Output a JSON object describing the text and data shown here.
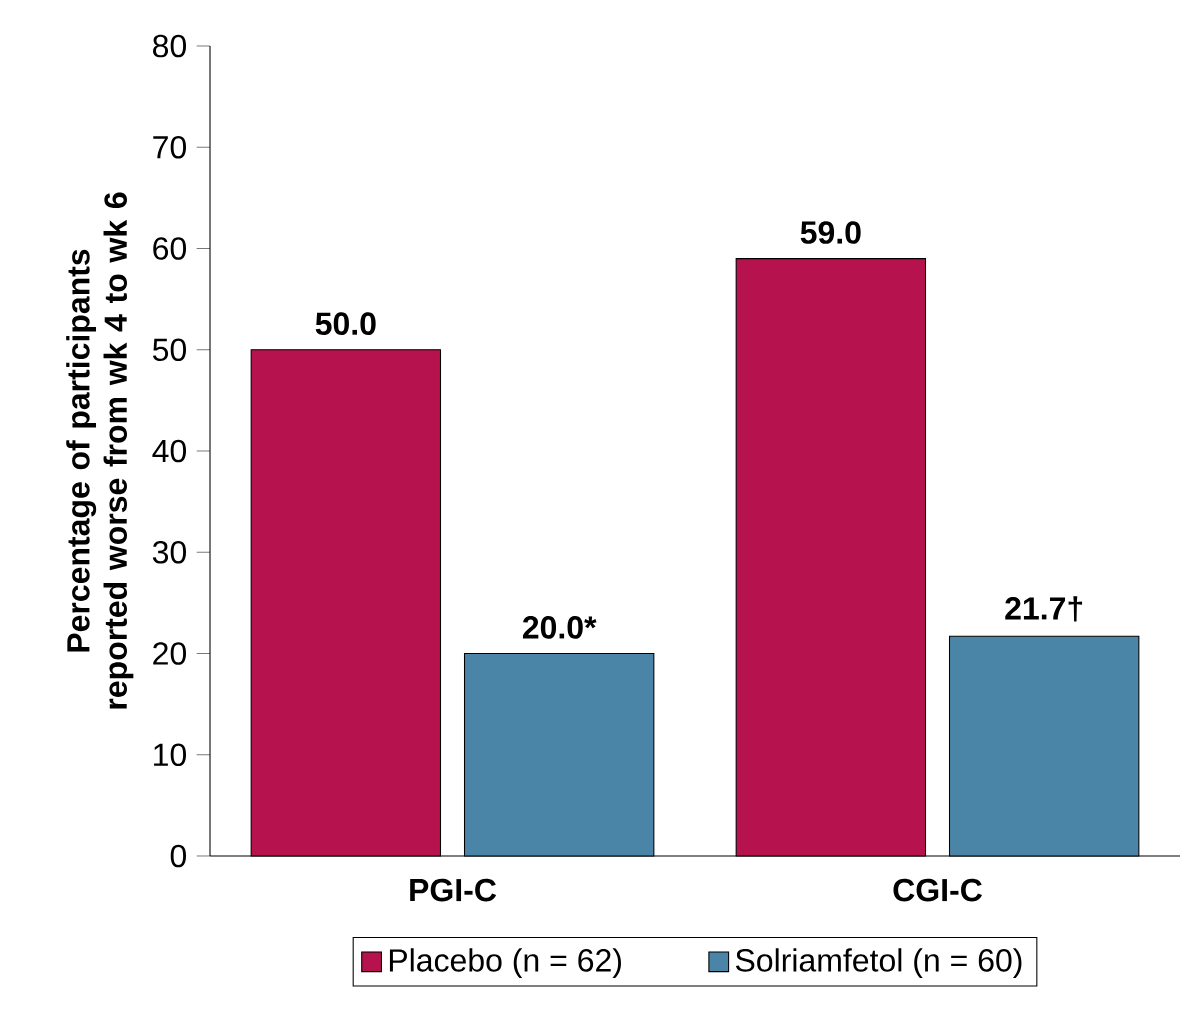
{
  "chart_data": {
    "type": "bar",
    "ylabel": "Percentage of participants reported worse from wk 4 to wk 6",
    "categories": [
      "PGI-C",
      "CGI-C"
    ],
    "series": [
      {
        "name": "Placebo (n = 62)",
        "color": "#b5124e",
        "values": [
          50.0,
          59.0
        ],
        "value_labels": [
          "50.0",
          "59.0"
        ]
      },
      {
        "name": "Solriamfetol (n = 60)",
        "color": "#4a85a8",
        "values": [
          20.0,
          21.7
        ],
        "value_labels": [
          "20.0*",
          "21.7†"
        ]
      }
    ],
    "ylim": [
      0,
      80
    ],
    "yticks": [
      0,
      10,
      20,
      30,
      40,
      50,
      60,
      70,
      80
    ],
    "legend": "bottom"
  }
}
